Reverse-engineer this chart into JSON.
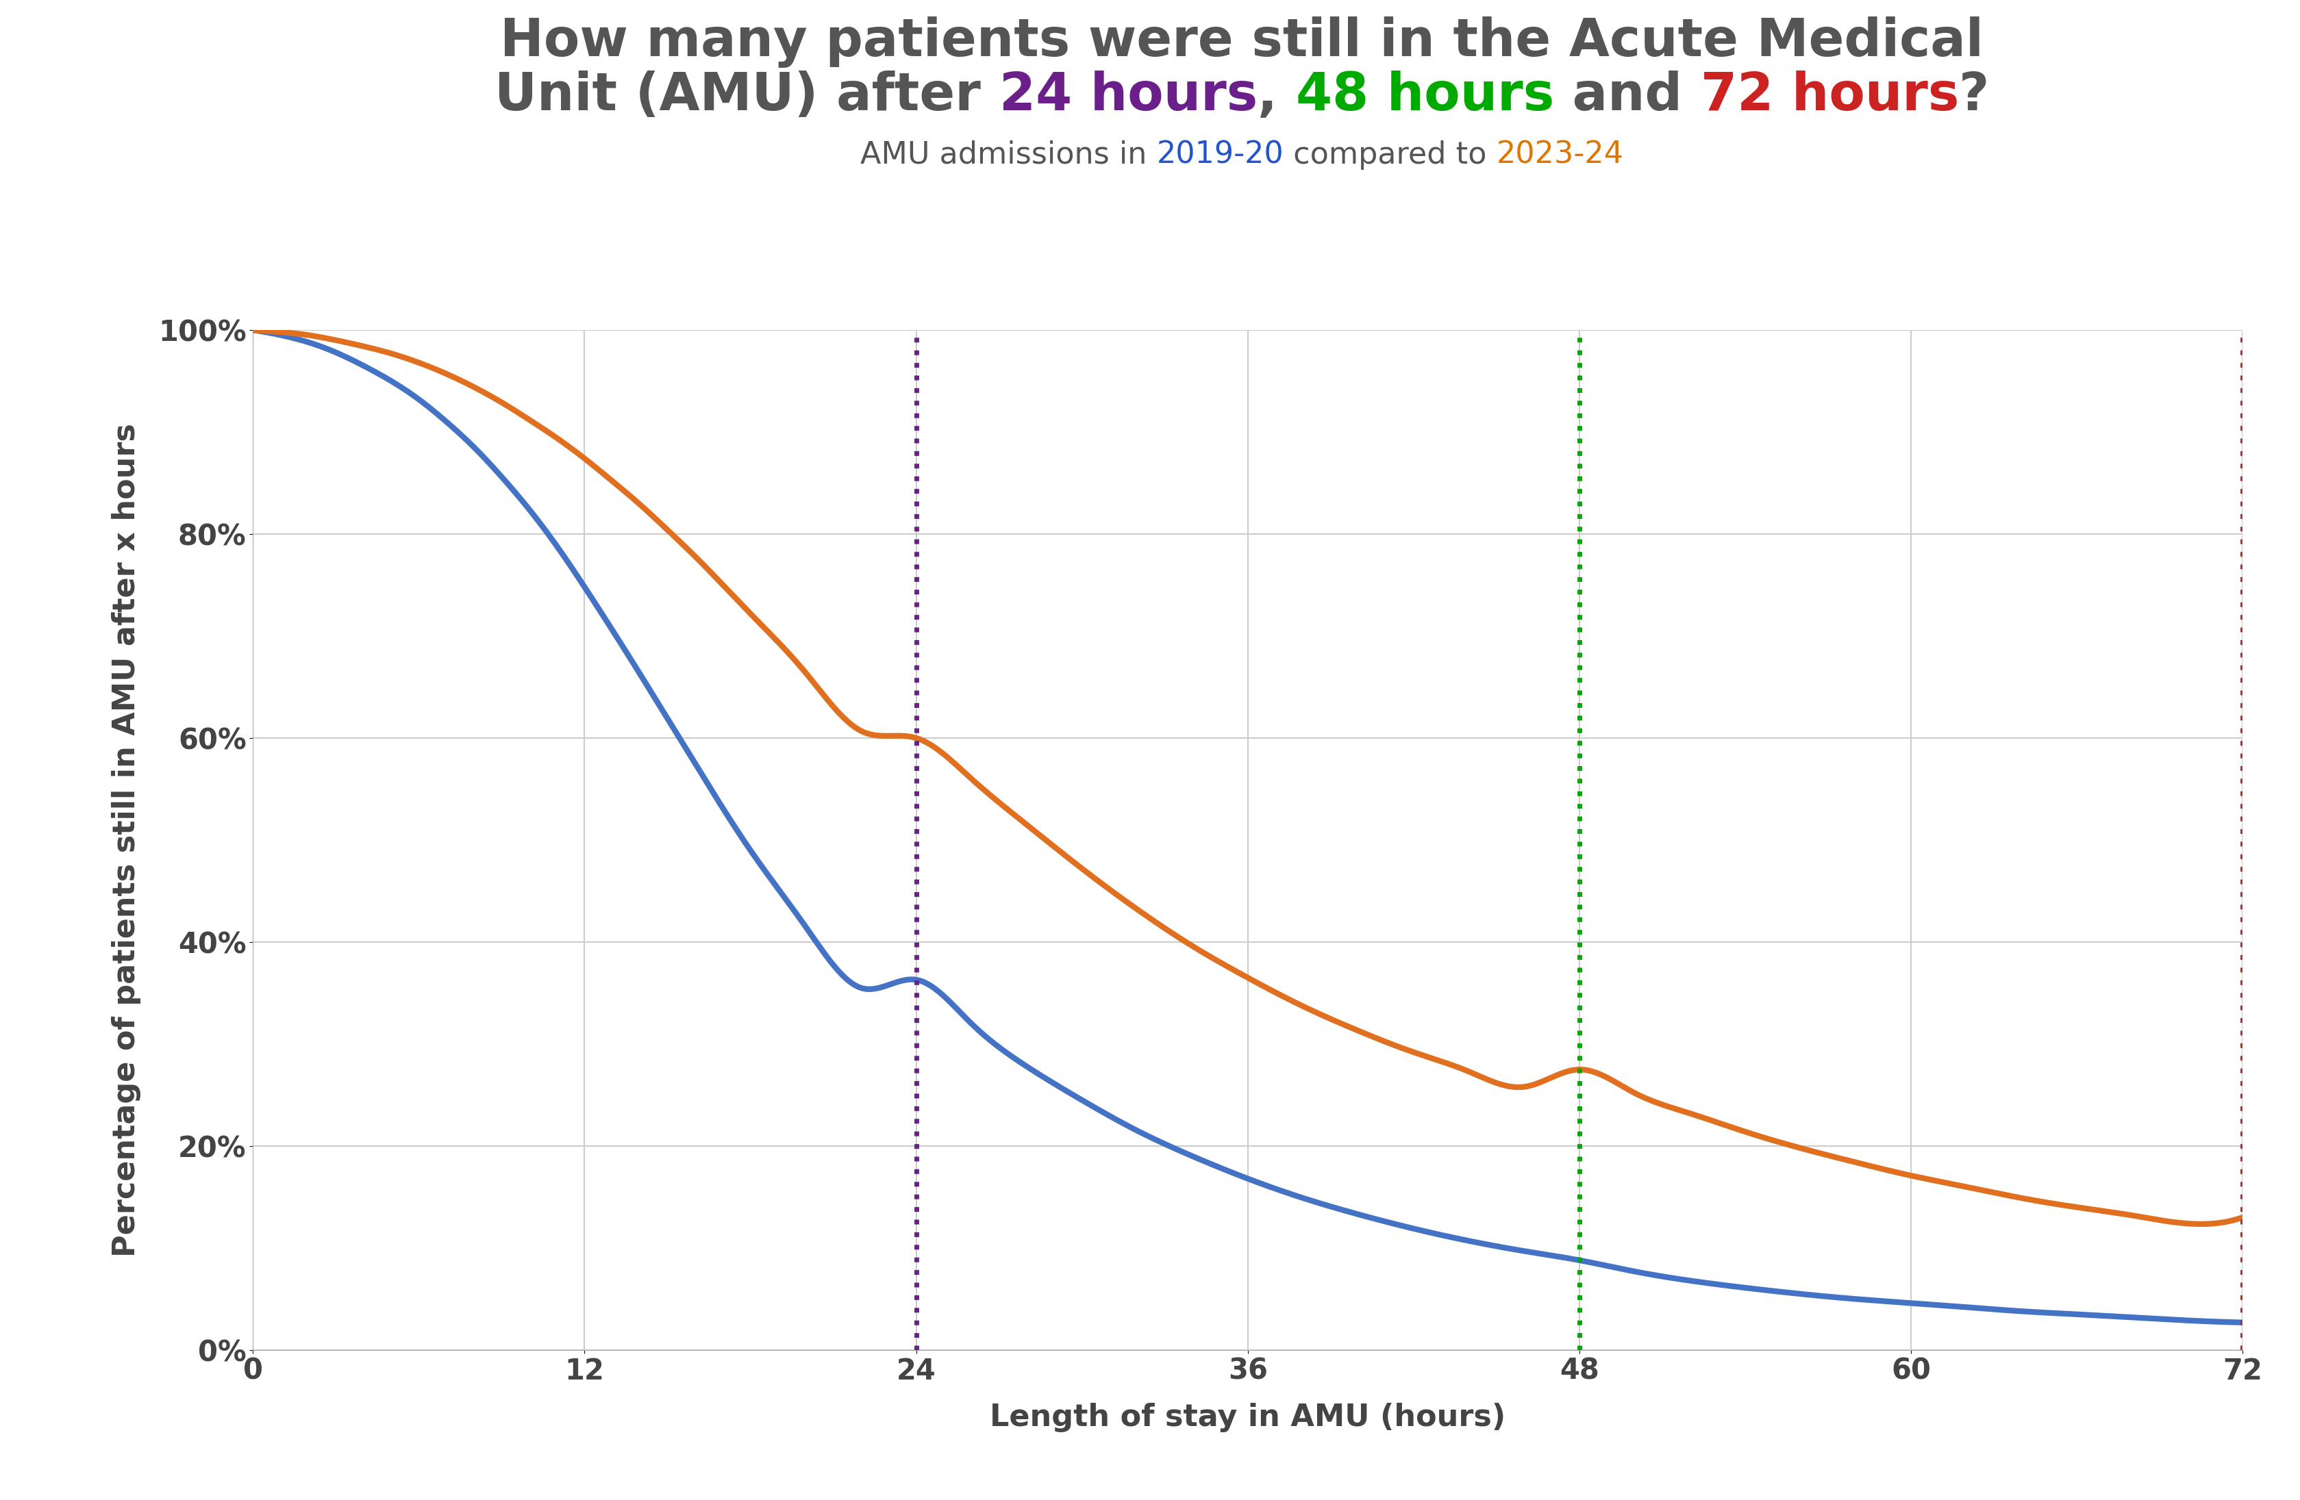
{
  "ylabel": "Percentage of patients still in AMU after x hours",
  "xlabel": "Length of stay in AMU (hours)",
  "xlim": [
    0,
    72
  ],
  "ylim": [
    0,
    1.0
  ],
  "xticks": [
    0,
    12,
    24,
    36,
    48,
    60,
    72
  ],
  "yticks": [
    0.0,
    0.2,
    0.4,
    0.6,
    0.8,
    1.0
  ],
  "ytick_labels": [
    "0%",
    "20%",
    "40%",
    "60%",
    "80%",
    "100%"
  ],
  "vline_24": {
    "x": 24,
    "color": "#6A1F8A",
    "linestyle": "dotted",
    "linewidth": 5.0
  },
  "vline_48": {
    "x": 48,
    "color": "#00AA00",
    "linestyle": "dotted",
    "linewidth": 5.0
  },
  "vline_72": {
    "x": 72,
    "color": "#CC2222",
    "linestyle": "dotted",
    "linewidth": 5.0
  },
  "curve_2019": {
    "color": "#4472C4",
    "label": "2019-20",
    "x": [
      0,
      1,
      2,
      3,
      4,
      5,
      6,
      7,
      8,
      9,
      10,
      11,
      12,
      13,
      14,
      15,
      16,
      18,
      20,
      22,
      24,
      26,
      28,
      30,
      32,
      34,
      36,
      38,
      40,
      42,
      44,
      46,
      48,
      50,
      52,
      54,
      56,
      58,
      60,
      62,
      64,
      66,
      68,
      70,
      72
    ],
    "y": [
      1.0,
      0.995,
      0.988,
      0.978,
      0.965,
      0.95,
      0.932,
      0.91,
      0.885,
      0.856,
      0.824,
      0.788,
      0.748,
      0.706,
      0.663,
      0.619,
      0.575,
      0.49,
      0.415,
      0.355,
      0.363,
      0.32,
      0.278,
      0.245,
      0.215,
      0.19,
      0.168,
      0.149,
      0.133,
      0.119,
      0.107,
      0.097,
      0.088,
      0.077,
      0.068,
      0.061,
      0.055,
      0.05,
      0.046,
      0.042,
      0.038,
      0.035,
      0.032,
      0.029,
      0.027
    ]
  },
  "curve_2023": {
    "color": "#E07020",
    "label": "2023-24",
    "x": [
      0,
      1,
      2,
      3,
      4,
      5,
      6,
      7,
      8,
      9,
      10,
      11,
      12,
      13,
      14,
      15,
      16,
      18,
      20,
      22,
      24,
      26,
      28,
      30,
      32,
      34,
      36,
      38,
      40,
      42,
      44,
      46,
      48,
      50,
      52,
      54,
      56,
      58,
      60,
      62,
      64,
      66,
      68,
      70,
      72
    ],
    "y": [
      1.0,
      0.998,
      0.995,
      0.99,
      0.984,
      0.977,
      0.968,
      0.957,
      0.944,
      0.929,
      0.912,
      0.894,
      0.874,
      0.852,
      0.829,
      0.804,
      0.778,
      0.722,
      0.664,
      0.607,
      0.6,
      0.56,
      0.515,
      0.472,
      0.432,
      0.396,
      0.365,
      0.337,
      0.313,
      0.292,
      0.273,
      0.258,
      0.275,
      0.252,
      0.232,
      0.214,
      0.198,
      0.184,
      0.171,
      0.16,
      0.149,
      0.14,
      0.132,
      0.124,
      0.13
    ]
  },
  "background_color": "#FFFFFF",
  "grid_color": "#CCCCCC",
  "title_fontsize": 55,
  "subtitle_fontsize": 32,
  "axis_label_fontsize": 32,
  "tick_fontsize": 30,
  "line_width": 6.0,
  "title_line1": "How many patients were still in the Acute Medical",
  "title_line2_parts": [
    {
      "text": "Unit (AMU) after ",
      "color": "#555555"
    },
    {
      "text": "24 hours",
      "color": "#6A1F8A"
    },
    {
      "text": ", ",
      "color": "#555555"
    },
    {
      "text": "48 hours",
      "color": "#00AA00"
    },
    {
      "text": " and ",
      "color": "#555555"
    },
    {
      "text": "72 hours",
      "color": "#CC2222"
    },
    {
      "text": "?",
      "color": "#555555"
    }
  ],
  "subtitle_parts": [
    {
      "text": "AMU admissions in ",
      "color": "#555555"
    },
    {
      "text": "2019-20",
      "color": "#2255CC"
    },
    {
      "text": " compared to ",
      "color": "#555555"
    },
    {
      "text": "2023-24",
      "color": "#DD7700"
    }
  ]
}
